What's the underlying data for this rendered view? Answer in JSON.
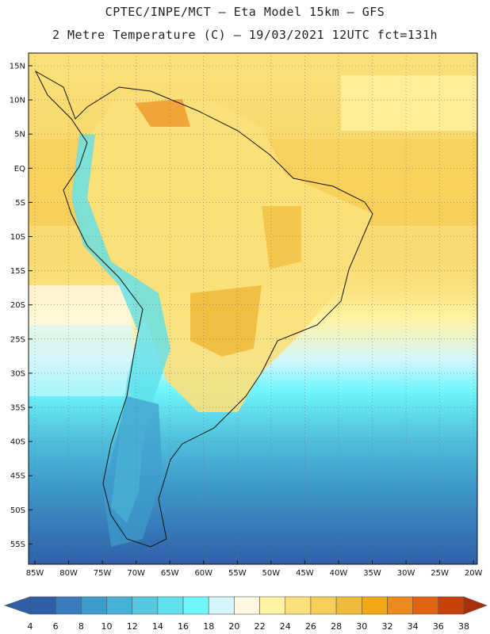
{
  "header": {
    "line1": "CPTEC/INPE/MCT –  Eta Model 15km – GFS",
    "line2": "2 Metre Temperature (C) – 19/03/2021 12UTC fct=131h"
  },
  "map": {
    "region": "South America",
    "lat_ticks": [
      "15N",
      "10N",
      "5N",
      "EQ",
      "5S",
      "10S",
      "15S",
      "20S",
      "25S",
      "30S",
      "35S",
      "40S",
      "45S",
      "50S",
      "55S"
    ],
    "lon_ticks": [
      "85W",
      "80W",
      "75W",
      "70W",
      "65W",
      "60W",
      "55W",
      "50W",
      "45W",
      "40W",
      "35W",
      "30W",
      "25W",
      "20W"
    ]
  },
  "colorbar": {
    "labels": [
      "4",
      "6",
      "8",
      "10",
      "12",
      "14",
      "16",
      "18",
      "20",
      "22",
      "24",
      "26",
      "28",
      "30",
      "32",
      "34",
      "36",
      "38"
    ],
    "colors": [
      "#2f5fa8",
      "#3a7bbf",
      "#3e9ccd",
      "#46b1d6",
      "#55c8df",
      "#5fe0ea",
      "#6ff6fb",
      "#d3f6fb",
      "#fff7e2",
      "#fff3a3",
      "#fbe07a",
      "#f6cf5a",
      "#efbb3b",
      "#f2a716",
      "#ec8a1d",
      "#e06414",
      "#c8400a",
      "#a8300a"
    ]
  }
}
